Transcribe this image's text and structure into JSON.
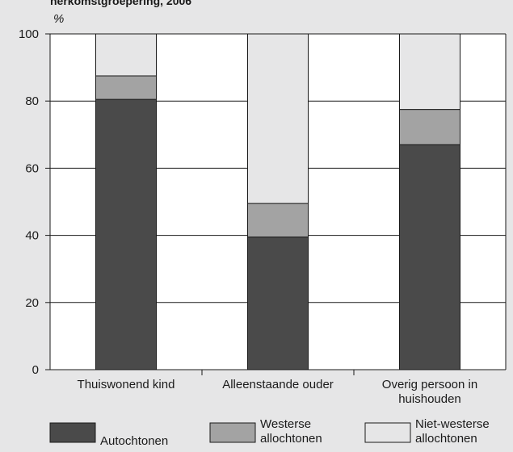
{
  "chart_data": {
    "type": "bar",
    "stacked": true,
    "title": "herkomstgroepering, 2006",
    "ylabel": "%",
    "ylim": [
      0,
      100
    ],
    "yticks": [
      0,
      20,
      40,
      60,
      80,
      100
    ],
    "grid": true,
    "legend_position": "bottom",
    "categories": [
      [
        "Thuiswonend kind"
      ],
      [
        "Alleenstaande ouder"
      ],
      [
        "Overig persoon in",
        "huishouden"
      ]
    ],
    "series": [
      {
        "name": [
          "Autochtonen"
        ],
        "color": "#4a4a4a",
        "values": [
          80.5,
          39.5,
          67
        ]
      },
      {
        "name": [
          "Westerse",
          "allochtonen"
        ],
        "color": "#a3a3a3",
        "values": [
          7,
          10,
          10.5
        ]
      },
      {
        "name": [
          "Niet-westerse",
          "allochtonen"
        ],
        "color": "#e6e6e7",
        "values": [
          12.5,
          50.5,
          22.5
        ]
      }
    ]
  }
}
